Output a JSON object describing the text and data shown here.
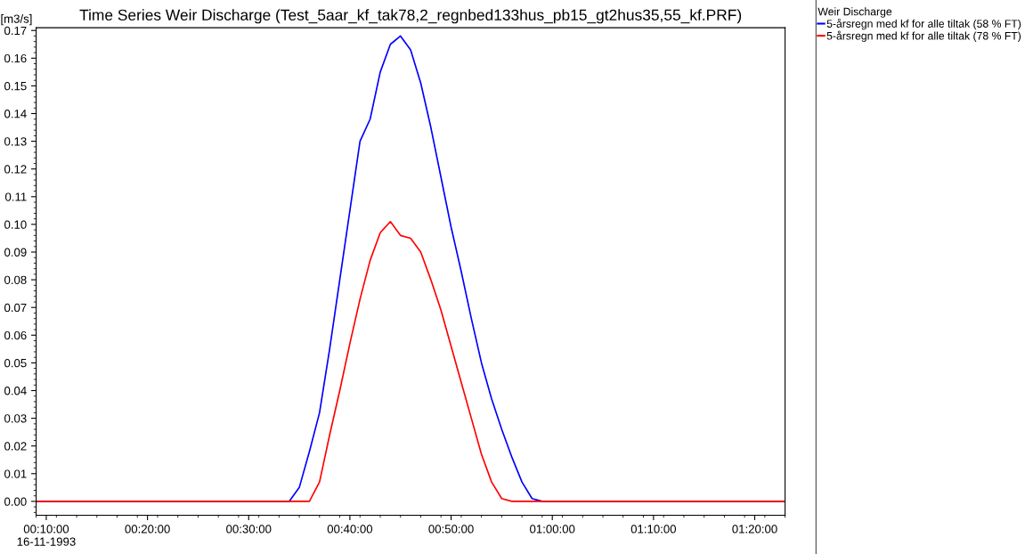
{
  "chart_data": {
    "type": "line",
    "title": "Time Series Weir Discharge (Test_5aar_kf_tak78,2_regnbed133hus_pb15_gt2hus35,55_kf.PRF)",
    "ylabel": "[m3/s]",
    "legend_title": "Weir Discharge",
    "legend": "right",
    "series": [
      {
        "name": "5-årsregn med kf for alle tiltak (58 % FT)",
        "color": "#0000ff",
        "x": [
          "1993-11-16T00:09",
          "1993-11-16T00:34",
          "1993-11-16T00:35",
          "1993-11-16T00:36",
          "1993-11-16T00:37",
          "1993-11-16T00:38",
          "1993-11-16T00:39",
          "1993-11-16T00:40",
          "1993-11-16T00:41",
          "1993-11-16T00:42",
          "1993-11-16T00:43",
          "1993-11-16T00:44",
          "1993-11-16T00:45",
          "1993-11-16T00:46",
          "1993-11-16T00:47",
          "1993-11-16T00:48",
          "1993-11-16T00:49",
          "1993-11-16T00:50",
          "1993-11-16T00:51",
          "1993-11-16T00:52",
          "1993-11-16T00:53",
          "1993-11-16T00:54",
          "1993-11-16T00:55",
          "1993-11-16T00:56",
          "1993-11-16T00:57",
          "1993-11-16T00:58",
          "1993-11-16T00:59",
          "1993-11-16T01:23"
        ],
        "values": [
          0,
          0,
          0.005,
          0.018,
          0.032,
          0.055,
          0.08,
          0.105,
          0.13,
          0.138,
          0.155,
          0.165,
          0.168,
          0.163,
          0.151,
          0.135,
          0.117,
          0.099,
          0.083,
          0.066,
          0.05,
          0.037,
          0.026,
          0.016,
          0.007,
          0.001,
          0,
          0
        ]
      },
      {
        "name": "5-årsregn med kf for alle tiltak (78 % FT)",
        "color": "#ff0000",
        "x": [
          "1993-11-16T00:09",
          "1993-11-16T00:36",
          "1993-11-16T00:37",
          "1993-11-16T00:38",
          "1993-11-16T00:39",
          "1993-11-16T00:40",
          "1993-11-16T00:41",
          "1993-11-16T00:42",
          "1993-11-16T00:43",
          "1993-11-16T00:44",
          "1993-11-16T00:45",
          "1993-11-16T00:46",
          "1993-11-16T00:47",
          "1993-11-16T00:48",
          "1993-11-16T00:49",
          "1993-11-16T00:50",
          "1993-11-16T00:51",
          "1993-11-16T00:52",
          "1993-11-16T00:53",
          "1993-11-16T00:54",
          "1993-11-16T00:55",
          "1993-11-16T00:56",
          "1993-11-16T01:23"
        ],
        "values": [
          0,
          0,
          0.007,
          0.024,
          0.04,
          0.057,
          0.073,
          0.087,
          0.097,
          0.101,
          0.096,
          0.095,
          0.09,
          0.08,
          0.069,
          0.056,
          0.043,
          0.03,
          0.017,
          0.007,
          0.001,
          0,
          0
        ]
      }
    ],
    "xlim": [
      "1993-11-16T00:09",
      "1993-11-16T01:23"
    ],
    "xticks": [
      {
        "value": "1993-11-16T00:10",
        "label": "00:10:00\n16-11-1993"
      },
      {
        "value": "1993-11-16T00:20",
        "label": "00:20:00"
      },
      {
        "value": "1993-11-16T00:30",
        "label": "00:30:00"
      },
      {
        "value": "1993-11-16T00:40",
        "label": "00:40:00"
      },
      {
        "value": "1993-11-16T00:50",
        "label": "00:50:00"
      },
      {
        "value": "1993-11-16T01:00",
        "label": "01:00:00"
      },
      {
        "value": "1993-11-16T01:10",
        "label": "01:10:00"
      },
      {
        "value": "1993-11-16T01:20",
        "label": "01:20:00"
      }
    ],
    "ylim": [
      -0.005,
      0.171
    ],
    "yticks": [
      {
        "value": 0,
        "label": "0.00"
      },
      {
        "value": 0.01,
        "label": "0.01"
      },
      {
        "value": 0.02,
        "label": "0.02"
      },
      {
        "value": 0.03,
        "label": "0.03"
      },
      {
        "value": 0.04,
        "label": "0.04"
      },
      {
        "value": 0.05,
        "label": "0.05"
      },
      {
        "value": 0.06,
        "label": "0.06"
      },
      {
        "value": 0.07,
        "label": "0.07"
      },
      {
        "value": 0.08,
        "label": "0.08"
      },
      {
        "value": 0.09,
        "label": "0.09"
      },
      {
        "value": 0.1,
        "label": "0.10"
      },
      {
        "value": 0.11,
        "label": "0.11"
      },
      {
        "value": 0.12,
        "label": "0.12"
      },
      {
        "value": 0.13,
        "label": "0.13"
      },
      {
        "value": 0.14,
        "label": "0.14"
      },
      {
        "value": 0.15,
        "label": "0.15"
      },
      {
        "value": 0.16,
        "label": "0.16"
      },
      {
        "value": 0.17,
        "label": "0.17"
      }
    ],
    "grid": false
  }
}
